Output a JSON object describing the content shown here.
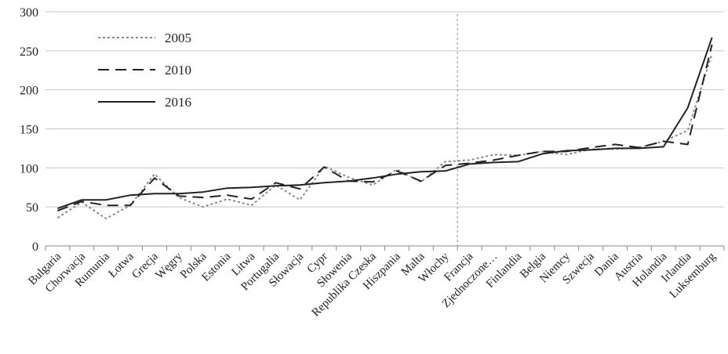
{
  "chart_data": {
    "type": "line",
    "title": "",
    "xlabel": "",
    "ylabel": "",
    "ylim": [
      0,
      300
    ],
    "yticks": [
      0,
      50,
      100,
      150,
      200,
      250,
      300
    ],
    "grid": "horizontal",
    "legend_position": "top-left",
    "divider_after_category": "Włochy",
    "categories": [
      "Bulgaria",
      "Chorwacja",
      "Rumunia",
      "Łotwa",
      "Grecja",
      "Węgry",
      "Polska",
      "Estonia",
      "Litwa",
      "Portugalia",
      "Słowacja",
      "Cypr",
      "Słowenia",
      "Republika Czeska",
      "Hiszpania",
      "Malta",
      "Włochy",
      "Francja",
      "Zjednoczone…",
      "Finlandia",
      "Belgia",
      "Niemcy",
      "Szwecja",
      "Dania",
      "Austria",
      "Holandia",
      "Irlandia",
      "Luksemburg"
    ],
    "series": [
      {
        "name": "2005",
        "style": "dotted",
        "color": "#8a8a8a",
        "values": [
          36,
          56,
          35,
          52,
          92,
          62,
          50,
          60,
          52,
          78,
          59,
          102,
          88,
          78,
          98,
          82,
          108,
          110,
          117,
          116,
          121,
          117,
          124,
          124,
          126,
          134,
          148,
          246
        ]
      },
      {
        "name": "2010",
        "style": "dashed",
        "color": "#222222",
        "values": [
          45,
          57,
          52,
          52,
          87,
          64,
          62,
          65,
          60,
          81,
          73,
          101,
          83,
          82,
          96,
          83,
          103,
          106,
          110,
          116,
          121,
          121,
          126,
          130,
          126,
          134,
          130,
          258
        ]
      },
      {
        "name": "2016",
        "style": "solid",
        "color": "#222222",
        "values": [
          48,
          59,
          59,
          65,
          67,
          67,
          69,
          74,
          75,
          77,
          78,
          81,
          83,
          87,
          92,
          95,
          96,
          105,
          107,
          108,
          118,
          122,
          123,
          125,
          125,
          127,
          177,
          267
        ]
      }
    ]
  }
}
